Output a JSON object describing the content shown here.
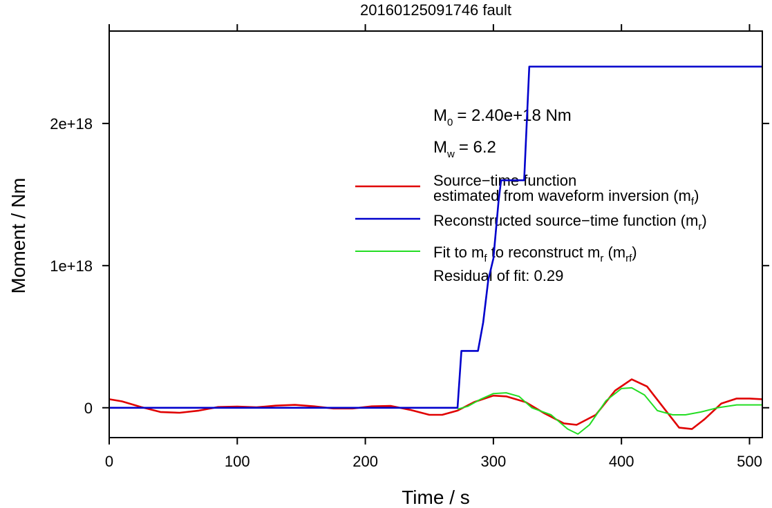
{
  "chart_data": {
    "type": "line",
    "title": "20160125091746 fault",
    "xlabel": "Time / s",
    "ylabel": "Moment / Nm",
    "xlim": [
      0,
      510
    ],
    "ylim": [
      -2.1e+17,
      2.65e+18
    ],
    "xticks": [
      0,
      100,
      200,
      300,
      400,
      500
    ],
    "xtick_labels": [
      "0",
      "100",
      "200",
      "300",
      "400",
      "500"
    ],
    "yticks": [
      0,
      1e+18,
      2e+18
    ],
    "ytick_labels": [
      "0",
      "1e+18",
      "2e+18"
    ],
    "grid": false,
    "legend_position": "right",
    "annotations": {
      "m0_prefix": "M",
      "m0_sub": "0",
      "m0_value": "= 2.40e+18 Nm",
      "mw_prefix": "M",
      "mw_sub": "w",
      "mw_value": "= 6.2",
      "residual": "Residual of fit: 0.29"
    },
    "legend": [
      {
        "color": "#e00000",
        "line1": "Source−time function",
        "line2_text": "estimated from waveform inversion (m",
        "line2_sub": "f",
        "line2_end": ")"
      },
      {
        "color": "#0000cc",
        "line1_text": "Reconstructed source−time function (m",
        "line1_sub": "r",
        "line1_end": ")"
      },
      {
        "color": "#22dd22",
        "text_a": "Fit to m",
        "sub_a": "f",
        "text_b": " to reconstruct m",
        "sub_b": "r",
        "text_c": " (m",
        "sub_c": "rf",
        "text_d": ")"
      }
    ],
    "series": [
      {
        "color": "#e00000",
        "x": [
          0,
          10,
          25,
          40,
          55,
          70,
          85,
          100,
          115,
          130,
          145,
          160,
          175,
          190,
          205,
          220,
          235,
          250,
          260,
          272,
          285,
          300,
          310,
          325,
          340,
          355,
          365,
          380,
          395,
          408,
          420,
          432,
          445,
          455,
          465,
          478,
          490,
          500,
          510
        ],
        "y": [
          6e+16,
          4.5e+16,
          5000000000000000.0,
          -3e+16,
          -3.5e+16,
          -2e+16,
          5000000000000000.0,
          8000000000000000.0,
          3000000000000000.0,
          1.5e+16,
          2e+16,
          1e+16,
          -5000000000000000.0,
          -5000000000000000.0,
          1e+16,
          1.3e+16,
          -1.5e+16,
          -5e+16,
          -5e+16,
          -2e+16,
          4e+16,
          8.5e+16,
          8e+16,
          4e+16,
          -4e+16,
          -1.1e+17,
          -1.2e+17,
          -5e+16,
          1.2e+17,
          2e+17,
          1.5e+17,
          1e+16,
          -1.4e+17,
          -1.5e+17,
          -8e+16,
          3e+16,
          6.5e+16,
          6.5e+16,
          6e+16
        ]
      },
      {
        "color": "#0000cc",
        "x": [
          0,
          272,
          275,
          288,
          292,
          296,
          300,
          304,
          306,
          310,
          316,
          320,
          324,
          326,
          328,
          510
        ],
        "y": [
          0,
          0,
          4e+17,
          4e+17,
          6e+17,
          9e+17,
          1.05e+18,
          1.45e+18,
          1.6e+18,
          1.6e+18,
          1.6e+18,
          1.6e+18,
          1.6e+18,
          2e+18,
          2.4e+18,
          2.4e+18
        ]
      },
      {
        "color": "#22dd22",
        "x": [
          272,
          280,
          290,
          300,
          310,
          320,
          330,
          345,
          358,
          366,
          375,
          388,
          400,
          408,
          418,
          428,
          440,
          450,
          462,
          475,
          490,
          510
        ],
        "y": [
          -1e+16,
          1e+16,
          6e+16,
          1e+17,
          1.05e+17,
          8e+16,
          0,
          -5e+16,
          -1.5e+17,
          -1.85e+17,
          -1.2e+17,
          5e+16,
          1.35e+17,
          1.4e+17,
          9e+16,
          -2e+16,
          -5e+16,
          -5e+16,
          -3e+16,
          0,
          2e+16,
          2e+16
        ]
      }
    ]
  }
}
